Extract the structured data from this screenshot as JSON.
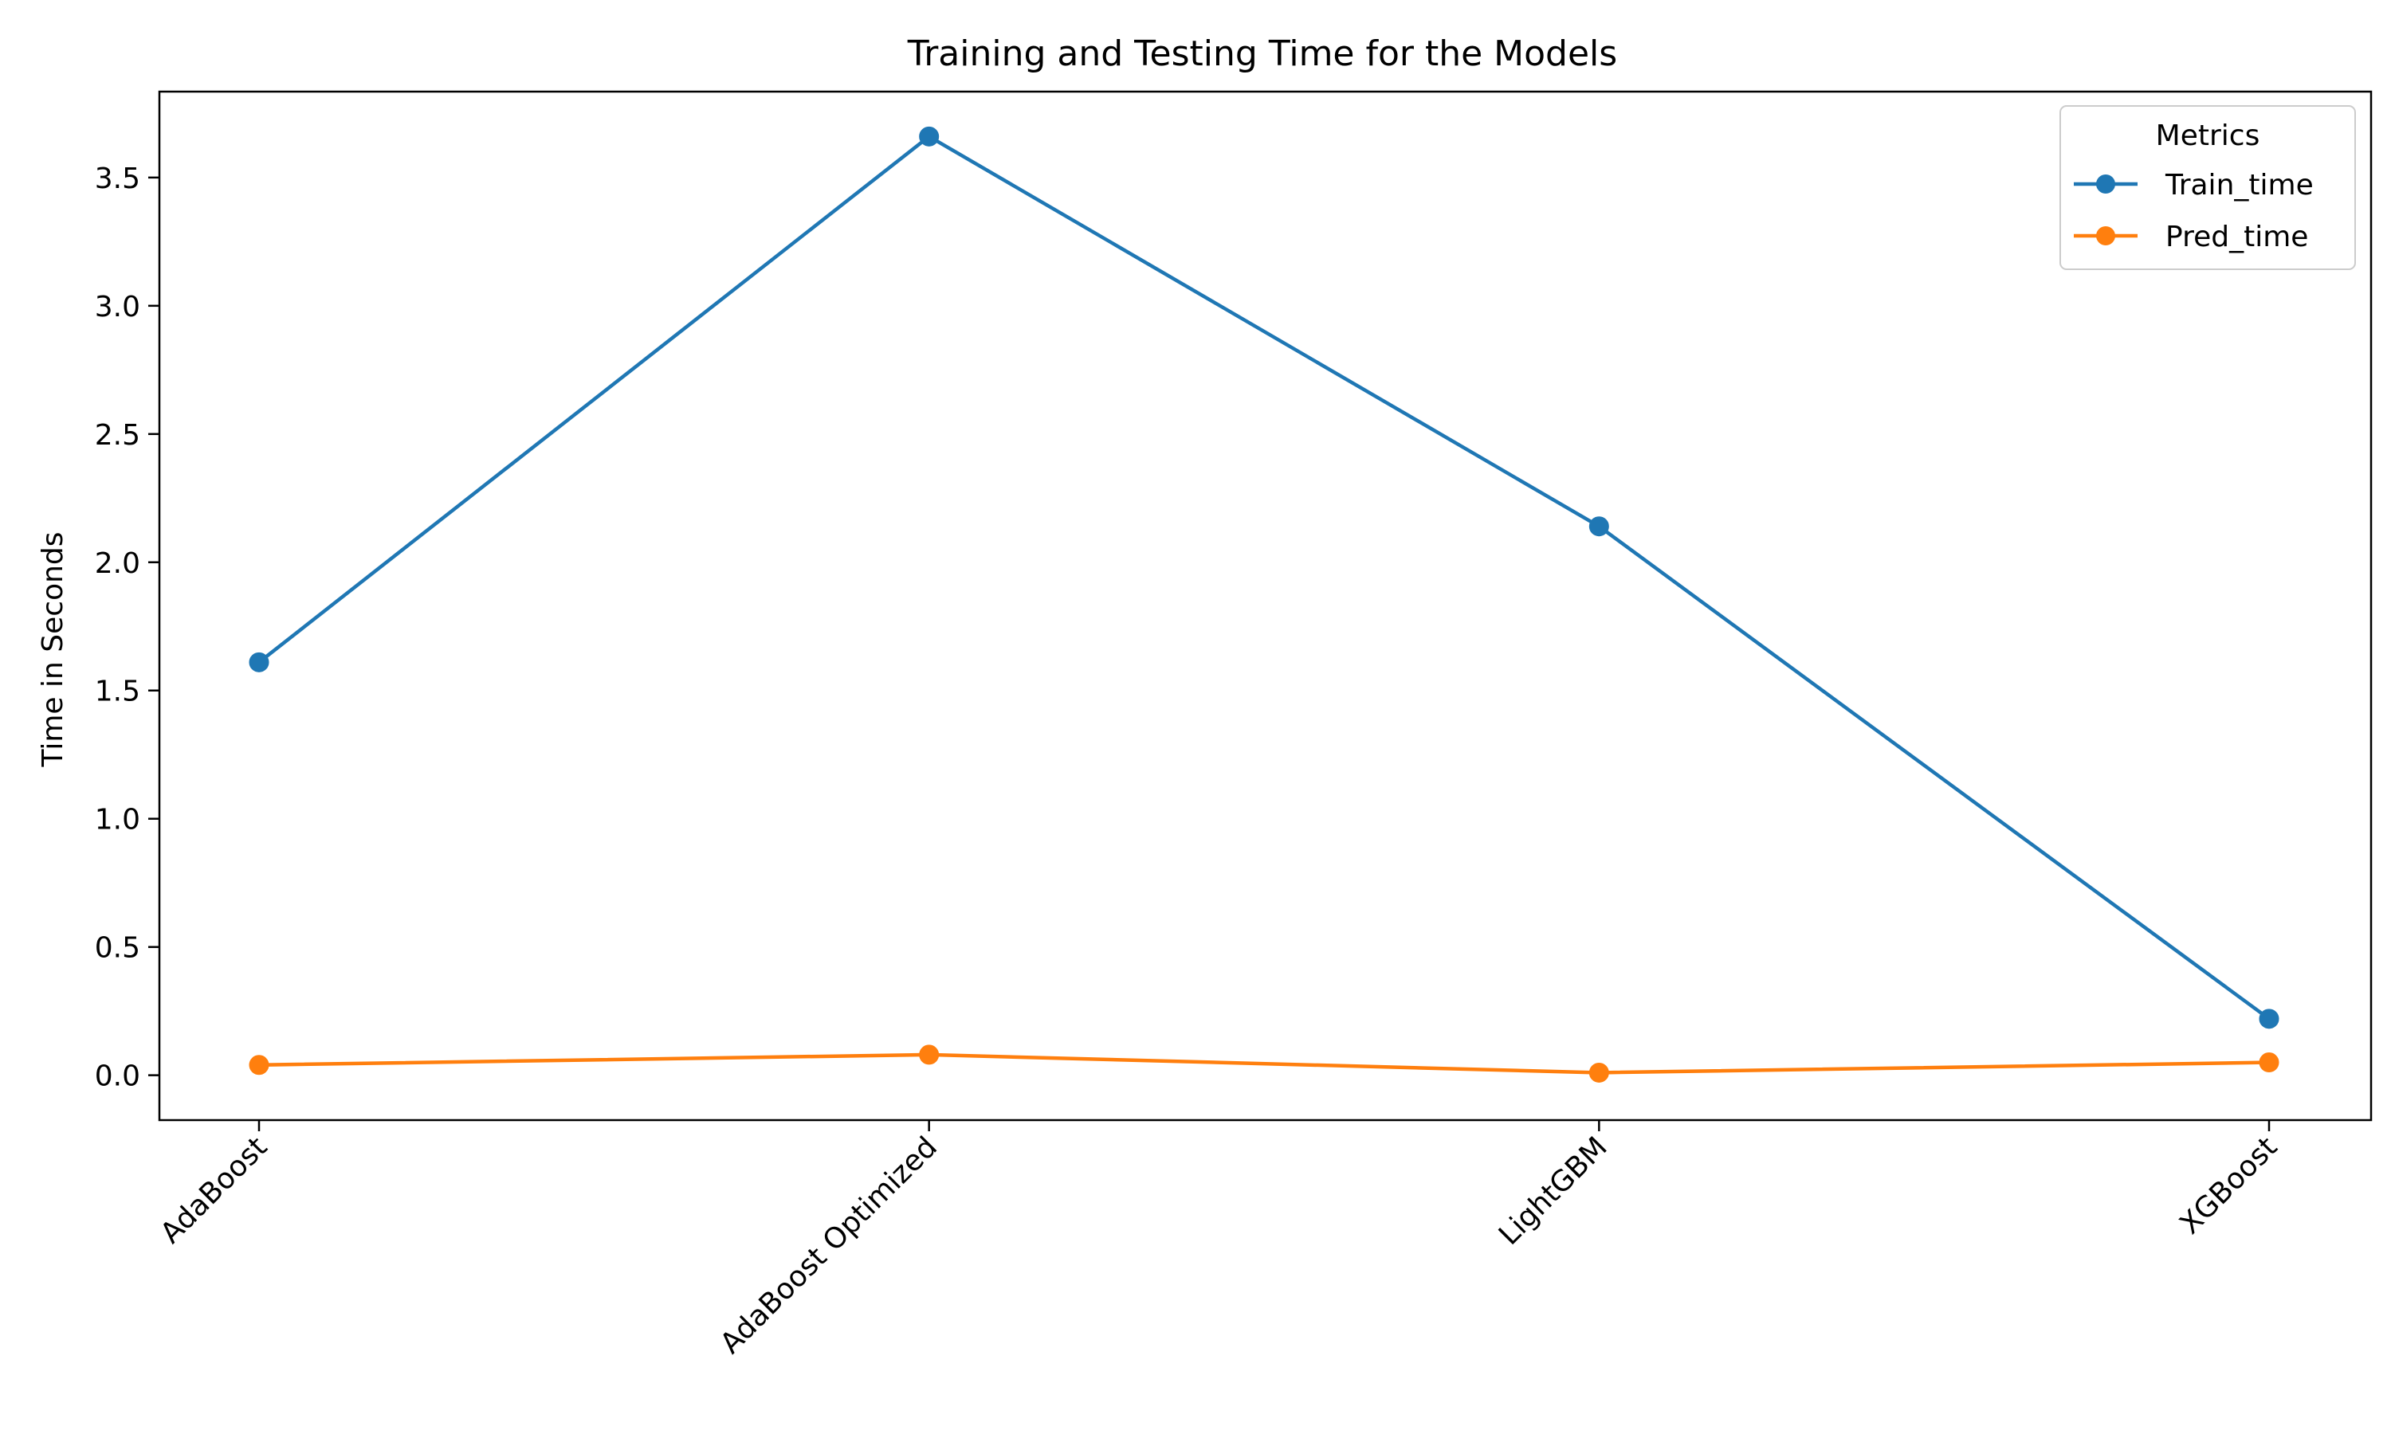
{
  "chart_data": {
    "type": "line",
    "title": "Training and Testing Time for the Models",
    "xlabel": "",
    "ylabel": "Time in Seconds",
    "categories": [
      "AdaBoost",
      "AdaBoost Optimized",
      "LightGBM",
      "XGBoost"
    ],
    "series": [
      {
        "name": "Train_time",
        "color": "#1f77b4",
        "values": [
          1.61,
          3.66,
          2.14,
          0.22
        ]
      },
      {
        "name": "Pred_time",
        "color": "#ff7f0e",
        "values": [
          0.04,
          0.08,
          0.01,
          0.05
        ]
      }
    ],
    "ylim": [
      -0.175,
      3.835
    ],
    "yticks": [
      "0.0",
      "0.5",
      "1.0",
      "1.5",
      "2.0",
      "2.5",
      "3.0",
      "3.5"
    ],
    "legend": {
      "title": "Metrics",
      "position": "top-right"
    },
    "grid": false,
    "marker": "circle"
  }
}
